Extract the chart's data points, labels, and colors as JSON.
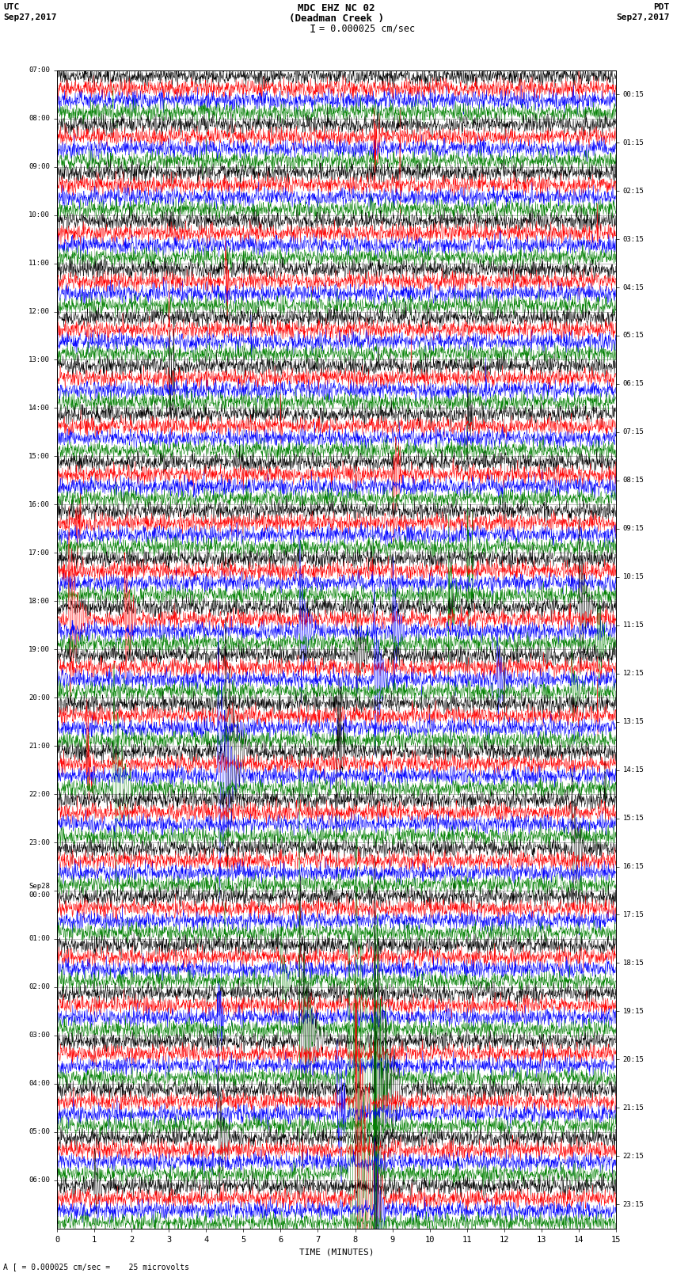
{
  "title_line1": "MDC EHZ NC 02",
  "title_line2": "(Deadman Creek )",
  "scale_label": "I = 0.000025 cm/sec",
  "utc_label": "UTC",
  "utc_date": "Sep27,2017",
  "pdt_label": "PDT",
  "pdt_date": "Sep27,2017",
  "xlabel": "TIME (MINUTES)",
  "footer": "A [ = 0.000025 cm/sec =    25 microvolts",
  "left_times": [
    "07:00",
    "08:00",
    "09:00",
    "10:00",
    "11:00",
    "12:00",
    "13:00",
    "14:00",
    "15:00",
    "16:00",
    "17:00",
    "18:00",
    "19:00",
    "20:00",
    "21:00",
    "22:00",
    "23:00",
    "Sep28\n00:00",
    "01:00",
    "02:00",
    "03:00",
    "04:00",
    "05:00",
    "06:00"
  ],
  "right_times": [
    "00:15",
    "01:15",
    "02:15",
    "03:15",
    "04:15",
    "05:15",
    "06:15",
    "07:15",
    "08:15",
    "09:15",
    "10:15",
    "11:15",
    "12:15",
    "13:15",
    "14:15",
    "15:15",
    "16:15",
    "17:15",
    "18:15",
    "19:15",
    "20:15",
    "21:15",
    "22:15",
    "23:15"
  ],
  "n_rows": 96,
  "n_samples": 1800,
  "colors_cycle": [
    "black",
    "red",
    "blue",
    "green"
  ],
  "noise_amp": 0.012,
  "grid_color": "#aaaaaa",
  "bg_color": "#ffffff"
}
